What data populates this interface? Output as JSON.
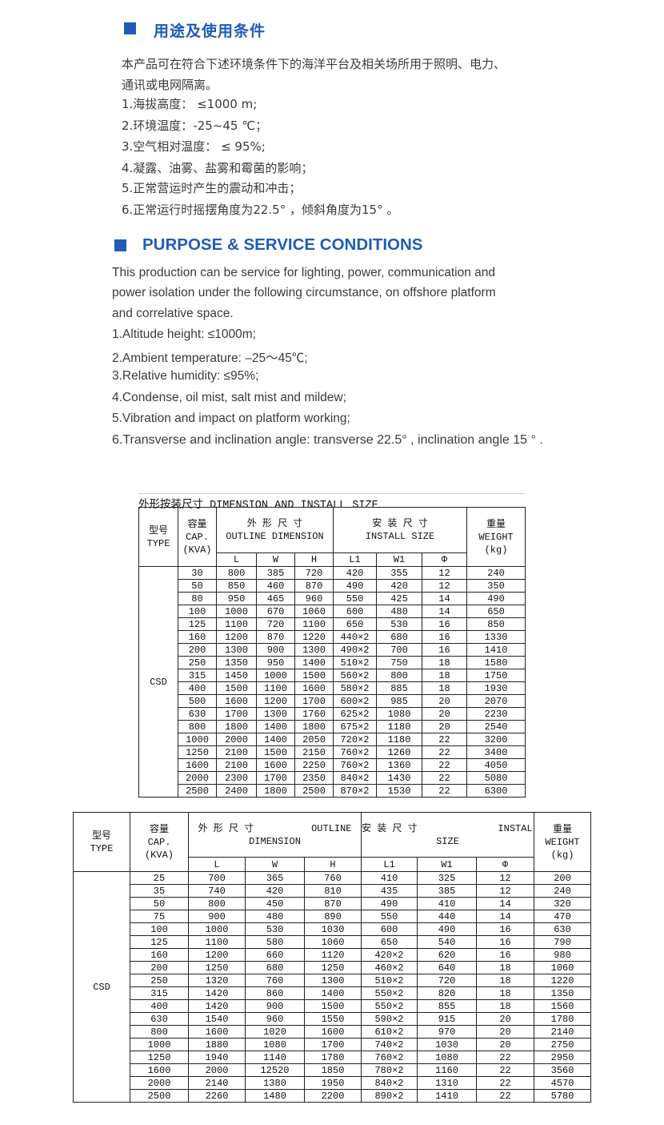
{
  "cn_section": {
    "title": "用途及使用条件",
    "lines": [
      "本产品可在符合下述环境条件下的海洋平台及相关场所用于照明、电力、",
      "通讯或电网隔离。",
      "1.海拔高度：  ≤1000 m;",
      "2.环境温度：-25~45 ℃；",
      "3.空气相对温度：  ≤ 95%;",
      "4.凝露、油雾、盐雾和霉菌的影响；",
      "5.正常营运时产生的震动和冲击；",
      "6.正常运行时摇摆角度为22.5° ，倾斜角度为15° 。"
    ]
  },
  "en_section": {
    "title": "PURPOSE & SERVICE CONDITIONS",
    "lines": [
      "This production can be service for lighting, power, communication and",
      "power isolation under the following circumstance, on offshore platform",
      "and correlative space.",
      "1.Altitude height: ≤1000m;",
      "2.Ambient temperature: –25～45℃;",
      "3.Relative humidity: ≤95%;",
      "4.Condense, oil mist, salt mist and mildew;",
      "5.Vibration and impact on platform working;",
      "6.Transverse and inclination angle: transverse 22.5° , inclination angle 15 ° ."
    ]
  },
  "accent_color": "#1f5cb8",
  "table1": {
    "caption": "外形按装尺寸 DIMENSION AND INSTALL SIZE",
    "h_type": "型号\nTYPE",
    "h_cap": "容量\nCAP.\n(KVA)",
    "h_outline": "外 形 尺 寸\nOUTLINE DIMENSION",
    "h_install": "安 装 尺 寸\nINSTALL SIZE",
    "h_weight": "重量\nWEIGHT\n(kg)",
    "sub": [
      "L",
      "W",
      "H",
      "L1",
      "W1",
      "Φ"
    ],
    "type": "CSD",
    "rows": [
      [
        "30",
        "800",
        "385",
        "720",
        "420",
        "355",
        "12",
        "240"
      ],
      [
        "50",
        "850",
        "460",
        "870",
        "490",
        "420",
        "12",
        "350"
      ],
      [
        "80",
        "950",
        "465",
        "960",
        "550",
        "425",
        "14",
        "490"
      ],
      [
        "100",
        "1000",
        "670",
        "1060",
        "600",
        "480",
        "14",
        "650"
      ],
      [
        "125",
        "1100",
        "720",
        "1100",
        "650",
        "530",
        "16",
        "850"
      ],
      [
        "160",
        "1200",
        "870",
        "1220",
        "440×2",
        "680",
        "16",
        "1330"
      ],
      [
        "200",
        "1300",
        "900",
        "1300",
        "490×2",
        "700",
        "16",
        "1410"
      ],
      [
        "250",
        "1350",
        "950",
        "1400",
        "510×2",
        "750",
        "18",
        "1580"
      ],
      [
        "315",
        "1450",
        "1000",
        "1500",
        "560×2",
        "800",
        "18",
        "1750"
      ],
      [
        "400",
        "1500",
        "1100",
        "1600",
        "580×2",
        "885",
        "18",
        "1930"
      ],
      [
        "500",
        "1600",
        "1200",
        "1700",
        "600×2",
        "985",
        "20",
        "2070"
      ],
      [
        "630",
        "1700",
        "1300",
        "1760",
        "625×2",
        "1080",
        "20",
        "2230"
      ],
      [
        "800",
        "1800",
        "1400",
        "1800",
        "675×2",
        "1180",
        "20",
        "2540"
      ],
      [
        "1000",
        "2000",
        "1400",
        "2050",
        "720×2",
        "1180",
        "22",
        "3200"
      ],
      [
        "1250",
        "2100",
        "1500",
        "2150",
        "760×2",
        "1260",
        "22",
        "3400"
      ],
      [
        "1600",
        "2100",
        "1600",
        "2250",
        "760×2",
        "1360",
        "22",
        "4050"
      ],
      [
        "2000",
        "2300",
        "1700",
        "2350",
        "840×2",
        "1430",
        "22",
        "5080"
      ],
      [
        "2500",
        "2400",
        "1800",
        "2500",
        "870×2",
        "1530",
        "22",
        "6300"
      ]
    ]
  },
  "table2": {
    "h_type": "型号\nTYPE",
    "h_cap": "容量\nCAP.\n(KVA)",
    "h_outline": "外 形 尺 寸          OUTLINE\nDIMENSION",
    "h_install": "安 装 尺 寸              INSTALL\nSIZE",
    "h_weight": "重量\nWEIGHT\n(kg)",
    "sub": [
      "L",
      "W",
      "H",
      "L1",
      "W1",
      "Φ"
    ],
    "type": "CSD",
    "rows": [
      [
        "25",
        "700",
        "365",
        "760",
        "410",
        "325",
        "12",
        "200"
      ],
      [
        "35",
        "740",
        "420",
        "810",
        "435",
        "385",
        "12",
        "240"
      ],
      [
        "50",
        "800",
        "450",
        "870",
        "490",
        "410",
        "14",
        "320"
      ],
      [
        "75",
        "900",
        "480",
        "890",
        "550",
        "440",
        "14",
        "470"
      ],
      [
        "100",
        "1000",
        "530",
        "1030",
        "600",
        "490",
        "16",
        "630"
      ],
      [
        "125",
        "1100",
        "580",
        "1060",
        "650",
        "540",
        "16",
        "790"
      ],
      [
        "160",
        "1200",
        "660",
        "1120",
        "420×2",
        "620",
        "16",
        "980"
      ],
      [
        "200",
        "1250",
        "680",
        "1250",
        "460×2",
        "640",
        "18",
        "1060"
      ],
      [
        "250",
        "1320",
        "760",
        "1300",
        "510×2",
        "720",
        "18",
        "1220"
      ],
      [
        "315",
        "1420",
        "860",
        "1400",
        "550×2",
        "820",
        "18",
        "1350"
      ],
      [
        "400",
        "1420",
        "900",
        "1500",
        "550×2",
        "855",
        "18",
        "1560"
      ],
      [
        "630",
        "1540",
        "960",
        "1550",
        "590×2",
        "915",
        "20",
        "1780"
      ],
      [
        "800",
        "1600",
        "1020",
        "1600",
        "610×2",
        "970",
        "20",
        "2140"
      ],
      [
        "1000",
        "1880",
        "1080",
        "1700",
        "740×2",
        "1030",
        "20",
        "2750"
      ],
      [
        "1250",
        "1940",
        "1140",
        "1780",
        "760×2",
        "1080",
        "22",
        "2950"
      ],
      [
        "1600",
        "2000",
        "12520",
        "1850",
        "780×2",
        "1160",
        "22",
        "3560"
      ],
      [
        "2000",
        "2140",
        "1380",
        "1950",
        "840×2",
        "1310",
        "22",
        "4570"
      ],
      [
        "2500",
        "2260",
        "1480",
        "2200",
        "890×2",
        "1410",
        "22",
        "5780"
      ]
    ]
  }
}
